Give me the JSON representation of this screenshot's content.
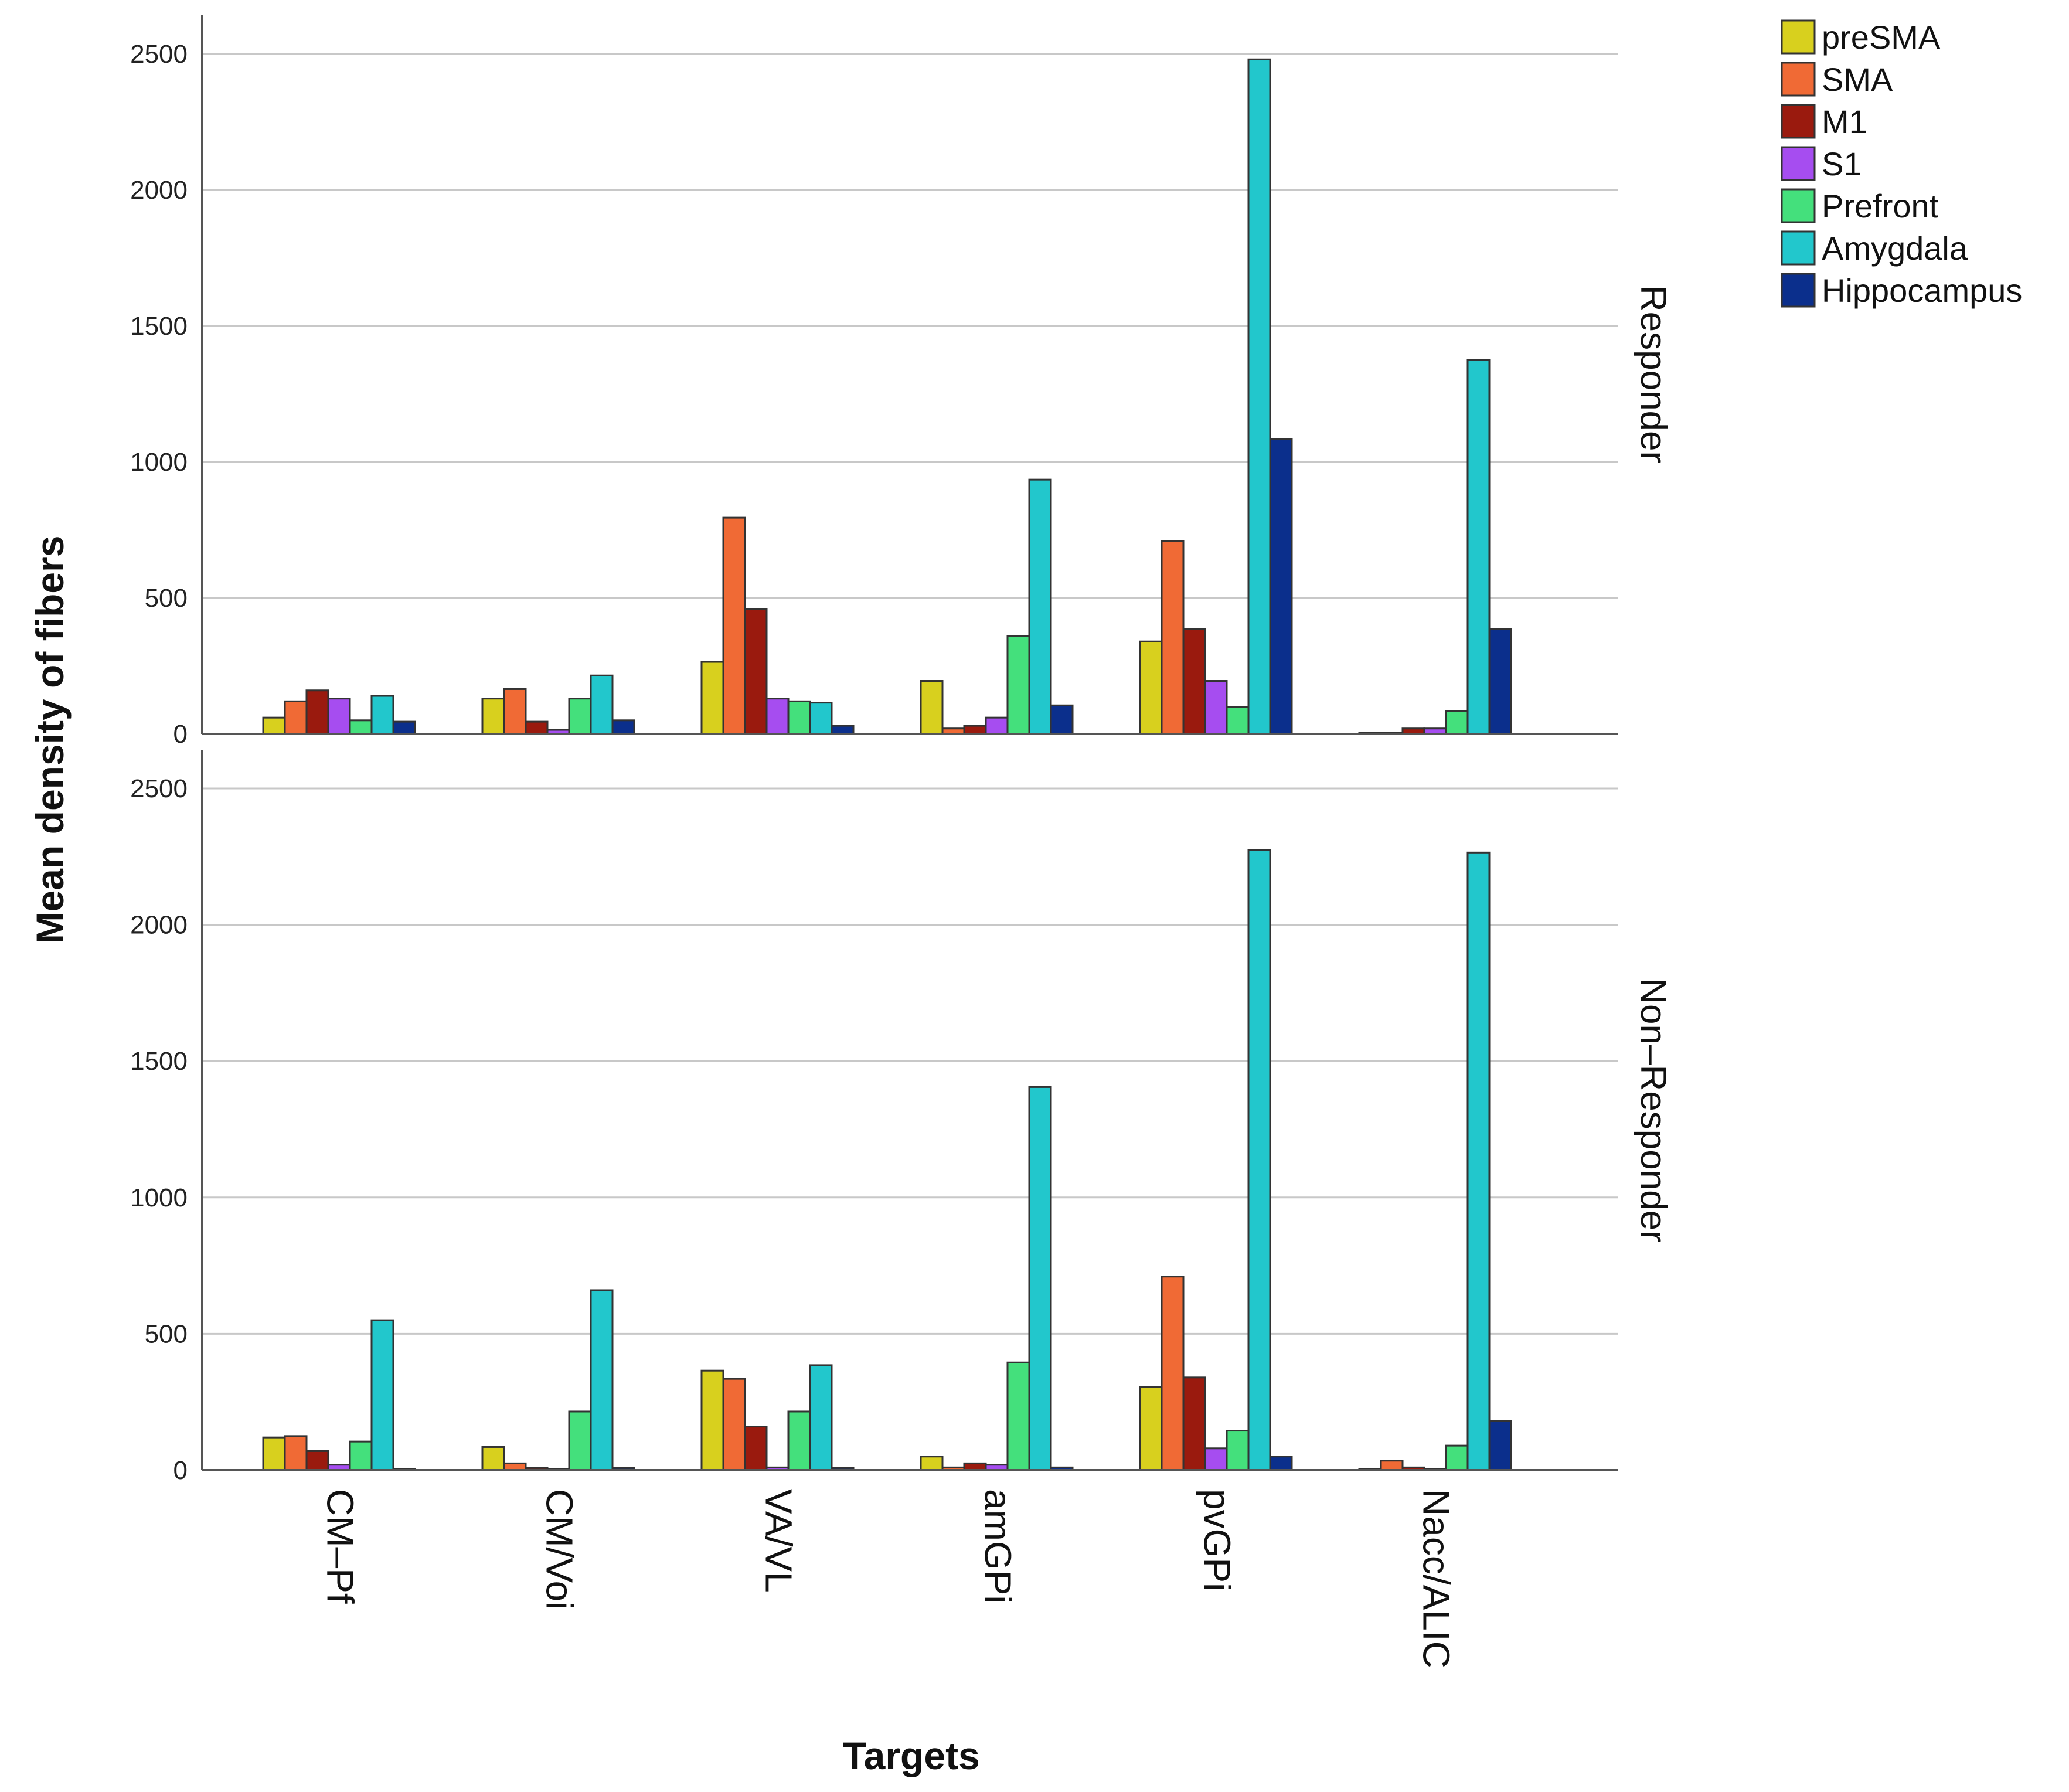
{
  "chart_data": {
    "type": "bar",
    "xlabel": "Targets",
    "ylabel": "Mean  density of fibers",
    "ylim": [
      0,
      2600
    ],
    "yticks": [
      0,
      500,
      1000,
      1500,
      2000,
      2500
    ],
    "categories": [
      "CM–Pf",
      "CM/Voi",
      "VA/VL",
      "amGPi",
      "pvGPi",
      "Nacc/ALIC"
    ],
    "legend": {
      "position": "top-right",
      "series": [
        {
          "name": "preSMA",
          "color": "#d8d01e"
        },
        {
          "name": "SMA",
          "color": "#f06a35"
        },
        {
          "name": "M1",
          "color": "#9a1a0e"
        },
        {
          "name": "S1",
          "color": "#a64df0"
        },
        {
          "name": "Prefront",
          "color": "#44e07c"
        },
        {
          "name": "Amygdala",
          "color": "#22c7cc"
        },
        {
          "name": "Hippocampus",
          "color": "#0b2f8c"
        }
      ]
    },
    "panels": [
      {
        "label": "Responder",
        "values": [
          [
            60,
            120,
            160,
            130,
            50,
            140,
            45
          ],
          [
            130,
            165,
            45,
            15,
            130,
            215,
            50
          ],
          [
            265,
            795,
            460,
            130,
            120,
            115,
            30
          ],
          [
            195,
            20,
            30,
            60,
            360,
            935,
            105
          ],
          [
            340,
            710,
            385,
            195,
            100,
            2480,
            1085
          ],
          [
            5,
            5,
            20,
            20,
            85,
            1375,
            385
          ]
        ]
      },
      {
        "label": "Non–Responder",
        "values": [
          [
            120,
            125,
            70,
            20,
            105,
            550,
            5
          ],
          [
            85,
            25,
            8,
            5,
            215,
            660,
            8
          ],
          [
            365,
            335,
            160,
            10,
            215,
            385,
            8
          ],
          [
            50,
            10,
            25,
            20,
            395,
            1405,
            10
          ],
          [
            305,
            710,
            340,
            80,
            145,
            2275,
            50
          ],
          [
            5,
            35,
            10,
            5,
            90,
            2265,
            180
          ]
        ]
      }
    ]
  }
}
